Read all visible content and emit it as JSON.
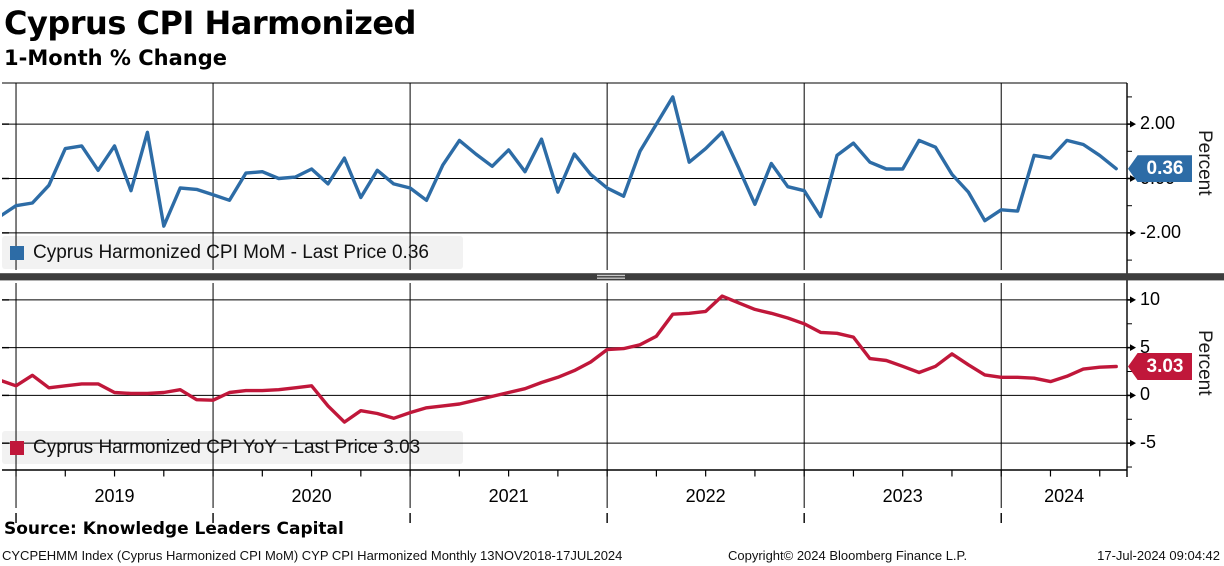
{
  "header": {
    "title": "Cyprus CPI Harmonized",
    "subtitle": "1-Month % Change"
  },
  "colors": {
    "mom_blue": "#2d6ca6",
    "yoy_red": "#c0173a",
    "grid": "#000000",
    "divider_bar": "#3e3e3e",
    "divider_handle": "#c8c8c8",
    "legend_bg": "#f2f2f2",
    "tag_text": "#ffffff"
  },
  "top_panel": {
    "legend_label": "Cyprus Harmonized CPI MoM - Last Price 0.36",
    "last_price": "0.36",
    "ylabel": "Percent",
    "major_ticks": [
      {
        "label": "2.00",
        "value": 2
      },
      {
        "label": "0.00",
        "value": 0
      },
      {
        "label": "-2.00",
        "value": -2
      }
    ],
    "minor_tick_values": [
      3,
      1,
      -1,
      -3
    ],
    "ylim": [
      -3.4,
      3.5
    ]
  },
  "bottom_panel": {
    "legend_label": "Cyprus Harmonized CPI YoY - Last Price 3.03",
    "last_price": "3.03",
    "ylabel": "Percent",
    "major_ticks": [
      {
        "label": "10",
        "value": 10
      },
      {
        "label": "5",
        "value": 5
      },
      {
        "label": "0",
        "value": 0
      },
      {
        "label": "-5",
        "value": -5
      }
    ],
    "minor_tick_values": [
      7.5,
      2.5,
      -2.5,
      -7.5
    ],
    "ylim": [
      -7.8,
      11.8
    ]
  },
  "x_axis": {
    "years": [
      "2019",
      "2020",
      "2021",
      "2022",
      "2023",
      "2024"
    ],
    "range": "13NOV2018-17JUL2024",
    "frequency": "Monthly"
  },
  "footer": {
    "source": "Source: Knowledge Leaders Capital",
    "ticker_line": "CYCPEHMM Index (Cyprus Harmonized CPI MoM) CYP CPI Harmonized  Monthly 13NOV2018-17JUL2024",
    "copyright": "Copyright© 2024 Bloomberg Finance L.P.",
    "timestamp": "17-Jul-2024 09:04:42"
  },
  "chart_data": [
    {
      "type": "line",
      "name": "Cyprus Harmonized CPI MoM",
      "panel": "top",
      "color": "#2d6ca6",
      "last_price": 0.36,
      "x_start": "2018-11",
      "x_end": "2024-07",
      "freq": "monthly",
      "months": [
        "2018-11",
        "2018-12",
        "2019-01",
        "2019-02",
        "2019-03",
        "2019-04",
        "2019-05",
        "2019-06",
        "2019-07",
        "2019-08",
        "2019-09",
        "2019-10",
        "2019-11",
        "2019-12",
        "2020-01",
        "2020-02",
        "2020-03",
        "2020-04",
        "2020-05",
        "2020-06",
        "2020-07",
        "2020-08",
        "2020-09",
        "2020-10",
        "2020-11",
        "2020-12",
        "2021-01",
        "2021-02",
        "2021-03",
        "2021-04",
        "2021-05",
        "2021-06",
        "2021-07",
        "2021-08",
        "2021-09",
        "2021-10",
        "2021-11",
        "2021-12",
        "2022-01",
        "2022-02",
        "2022-03",
        "2022-04",
        "2022-05",
        "2022-06",
        "2022-07",
        "2022-08",
        "2022-09",
        "2022-10",
        "2022-11",
        "2022-12",
        "2023-01",
        "2023-02",
        "2023-03",
        "2023-04",
        "2023-05",
        "2023-06",
        "2023-07",
        "2023-08",
        "2023-09",
        "2023-10",
        "2023-11",
        "2023-12",
        "2024-01",
        "2024-02",
        "2024-03",
        "2024-04",
        "2024-05",
        "2024-06",
        "2024-07"
      ],
      "values": [
        -1.4,
        -1.0,
        -0.9,
        -0.25,
        1.1,
        1.2,
        0.3,
        1.2,
        -0.45,
        1.7,
        -1.75,
        -0.35,
        -0.4,
        -0.6,
        -0.8,
        0.2,
        0.25,
        0.0,
        0.05,
        0.35,
        -0.2,
        0.75,
        -0.7,
        0.3,
        -0.2,
        -0.35,
        -0.8,
        0.5,
        1.4,
        0.9,
        0.45,
        1.05,
        0.25,
        1.45,
        -0.5,
        0.9,
        0.15,
        -0.35,
        -0.65,
        1.0,
        2.0,
        3.0,
        0.6,
        1.1,
        1.7,
        0.4,
        -0.95,
        0.55,
        -0.3,
        -0.45,
        -1.4,
        0.85,
        1.3,
        0.6,
        0.35,
        0.35,
        1.4,
        1.15,
        0.15,
        -0.5,
        -1.55,
        -1.15,
        -1.2,
        0.85,
        0.75,
        1.4,
        1.25,
        0.85,
        0.36
      ]
    },
    {
      "type": "line",
      "name": "Cyprus Harmonized CPI YoY",
      "panel": "bottom",
      "color": "#c0173a",
      "last_price": 3.03,
      "x_start": "2018-11",
      "x_end": "2024-07",
      "freq": "monthly",
      "months": [
        "2018-11",
        "2018-12",
        "2019-01",
        "2019-02",
        "2019-03",
        "2019-04",
        "2019-05",
        "2019-06",
        "2019-07",
        "2019-08",
        "2019-09",
        "2019-10",
        "2019-11",
        "2019-12",
        "2020-01",
        "2020-02",
        "2020-03",
        "2020-04",
        "2020-05",
        "2020-06",
        "2020-07",
        "2020-08",
        "2020-09",
        "2020-10",
        "2020-11",
        "2020-12",
        "2021-01",
        "2021-02",
        "2021-03",
        "2021-04",
        "2021-05",
        "2021-06",
        "2021-07",
        "2021-08",
        "2021-09",
        "2021-10",
        "2021-11",
        "2021-12",
        "2022-01",
        "2022-02",
        "2022-03",
        "2022-04",
        "2022-05",
        "2022-06",
        "2022-07",
        "2022-08",
        "2022-09",
        "2022-10",
        "2022-11",
        "2022-12",
        "2023-01",
        "2023-02",
        "2023-03",
        "2023-04",
        "2023-05",
        "2023-06",
        "2023-07",
        "2023-08",
        "2023-09",
        "2023-10",
        "2023-11",
        "2023-12",
        "2024-01",
        "2024-02",
        "2024-03",
        "2024-04",
        "2024-05",
        "2024-06",
        "2024-07"
      ],
      "values": [
        1.6,
        1.0,
        2.1,
        0.8,
        1.0,
        1.2,
        1.2,
        0.3,
        0.2,
        0.2,
        0.3,
        0.6,
        -0.45,
        -0.5,
        0.3,
        0.5,
        0.5,
        0.6,
        0.8,
        1.0,
        -1.1,
        -2.8,
        -1.6,
        -1.9,
        -2.4,
        -1.8,
        -1.3,
        -1.1,
        -0.9,
        -0.5,
        -0.1,
        0.3,
        0.7,
        1.35,
        1.9,
        2.6,
        3.5,
        4.8,
        4.9,
        5.3,
        6.2,
        8.5,
        8.6,
        8.8,
        10.4,
        9.7,
        9.0,
        8.6,
        8.1,
        7.5,
        6.6,
        6.5,
        6.1,
        3.85,
        3.65,
        3.05,
        2.4,
        3.05,
        4.35,
        3.2,
        2.15,
        1.9,
        1.9,
        1.8,
        1.45,
        2.0,
        2.75,
        2.95,
        3.03
      ]
    }
  ]
}
